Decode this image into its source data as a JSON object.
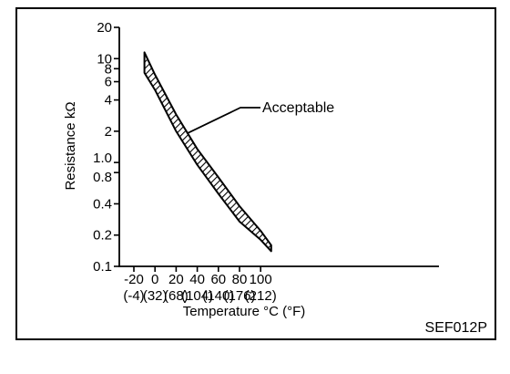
{
  "figure_code": "SEF012P",
  "chart_data": {
    "type": "area",
    "title": "",
    "xlabel": "Temperature °C (°F)",
    "ylabel": "Resistance  kΩ",
    "x_ticks": [
      {
        "c": -20,
        "c_label": "-20",
        "f_label": "(-4)"
      },
      {
        "c": 0,
        "c_label": "0",
        "f_label": "(32)"
      },
      {
        "c": 20,
        "c_label": "20",
        "f_label": "(68)"
      },
      {
        "c": 40,
        "c_label": "40",
        "f_label": "(104)"
      },
      {
        "c": 60,
        "c_label": "60",
        "f_label": "(140)"
      },
      {
        "c": 80,
        "c_label": "80",
        "f_label": "(176)"
      },
      {
        "c": 100,
        "c_label": "100",
        "f_label": "(212)"
      }
    ],
    "y_scale": "log",
    "y_ticks": [
      {
        "value": 0.1,
        "label": "0.1"
      },
      {
        "value": 0.2,
        "label": "0.2"
      },
      {
        "value": 0.4,
        "label": "0.4"
      },
      {
        "value": 0.8,
        "label": "0.8"
      },
      {
        "value": 1.0,
        "label": "1.0"
      },
      {
        "value": 2,
        "label": "2"
      },
      {
        "value": 4,
        "label": "4"
      },
      {
        "value": 6,
        "label": "6"
      },
      {
        "value": 8,
        "label": "8"
      },
      {
        "value": 10,
        "label": "10"
      },
      {
        "value": 20,
        "label": "20"
      }
    ],
    "xlim": [
      -30,
      115
    ],
    "ylim": [
      0.1,
      20
    ],
    "series": [
      {
        "name": "Acceptable",
        "upper": [
          [
            -10,
            11.5
          ],
          [
            0,
            7.0
          ],
          [
            20,
            2.9
          ],
          [
            40,
            1.35
          ],
          [
            60,
            0.72
          ],
          [
            80,
            0.38
          ],
          [
            100,
            0.22
          ],
          [
            110,
            0.16
          ]
        ],
        "lower": [
          [
            -10,
            7.3
          ],
          [
            0,
            5.0
          ],
          [
            20,
            2.0
          ],
          [
            40,
            0.95
          ],
          [
            60,
            0.5
          ],
          [
            80,
            0.27
          ],
          [
            100,
            0.18
          ],
          [
            110,
            0.14
          ]
        ]
      }
    ],
    "annotation": "Acceptable",
    "grid": false
  }
}
